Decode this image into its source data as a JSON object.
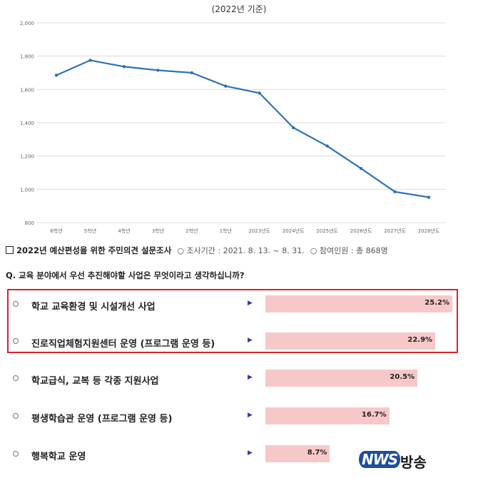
{
  "chart_data": [
    {
      "type": "line",
      "subtitle": "(2022년 기준)",
      "x": [
        "6학년",
        "5학년",
        "4학년",
        "3학년",
        "2학년",
        "1학년",
        "2023년도",
        "2024년도",
        "2025년도",
        "2026년도",
        "2027년도",
        "2028년도"
      ],
      "series": [
        {
          "values": [
            1685,
            1775,
            1737,
            1715,
            1700,
            1620,
            1578,
            1370,
            1260,
            1125,
            985,
            952
          ]
        }
      ],
      "ylim": [
        800,
        2000
      ],
      "yticks": [
        "800",
        "1,000",
        "1,200",
        "1,400",
        "1,600",
        "1,800",
        "2,000"
      ],
      "grid": true,
      "color": "#2e73b8"
    },
    {
      "type": "bar",
      "orientation": "horizontal",
      "categories": [
        "학교 교육환경 및 시설개선 사업",
        "진로직업체험지원센터 운영 (프로그램 운영 등)",
        "학교급식, 교복 등 각종 지원사업",
        "평생학습관 운영 (프로그램 운영 등)",
        "행복학교 운영"
      ],
      "values": [
        25.2,
        22.9,
        20.5,
        16.7,
        8.7
      ],
      "value_labels": [
        "25.2%",
        "22.9%",
        "20.5%",
        "16.7%",
        "8.7%"
      ],
      "highlighted": [
        0,
        1
      ],
      "bar_color": "#f7c8c8",
      "highlight_color": "#d9262b"
    }
  ],
  "survey": {
    "title": "2022년 예산편성을 위한 주민의견 설문조사",
    "period": "○ 조사기간 : 2021. 8. 13. ~ 8. 31.",
    "participants": "○ 참여인원 : 총 868명",
    "question": "Q. 교육 분야에서 우선 추진해야할 사업은 무엇이라고 생각하십니까?"
  },
  "logo": {
    "brand": "NWS",
    "suffix": "방송"
  }
}
